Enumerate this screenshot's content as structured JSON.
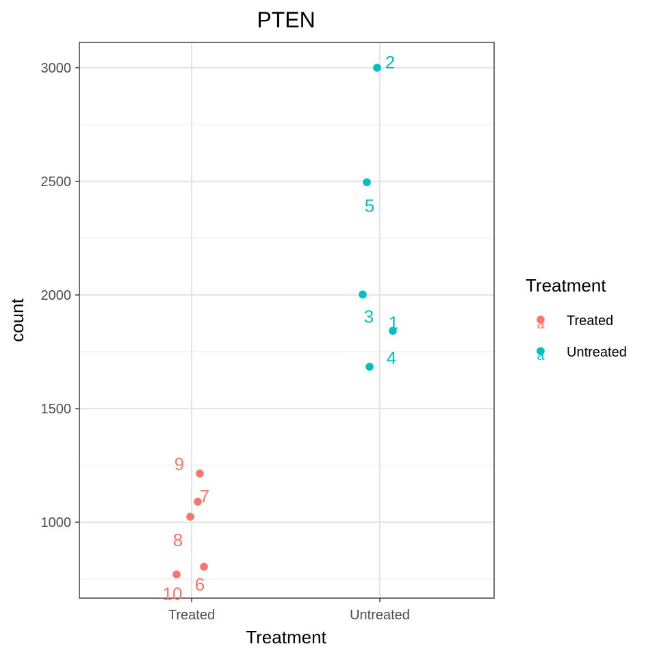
{
  "chart_data": {
    "type": "scatter",
    "title": "PTEN",
    "xlabel": "Treatment",
    "ylabel": "count",
    "categories": [
      "Treated",
      "Untreated"
    ],
    "y_ticks": [
      1000,
      1500,
      2000,
      2500,
      3000
    ],
    "ylim": [
      650,
      3110
    ],
    "grid": true,
    "legend": {
      "title": "Treatment",
      "position": "right",
      "entries": [
        {
          "label": "Treated",
          "color": "#F8766D"
        },
        {
          "label": "Untreated",
          "color": "#00BFC4"
        }
      ]
    },
    "series": [
      {
        "name": "Treated",
        "color": "#F8766D",
        "points": [
          {
            "label": "6",
            "category": "Treated",
            "count": 804
          },
          {
            "label": "7",
            "category": "Treated",
            "count": 1090
          },
          {
            "label": "8",
            "category": "Treated",
            "count": 1024
          },
          {
            "label": "9",
            "category": "Treated",
            "count": 1214
          },
          {
            "label": "10",
            "category": "Treated",
            "count": 770
          }
        ]
      },
      {
        "name": "Untreated",
        "color": "#00BFC4",
        "points": [
          {
            "label": "1",
            "category": "Untreated",
            "count": 1842
          },
          {
            "label": "2",
            "category": "Untreated",
            "count": 3000
          },
          {
            "label": "3",
            "category": "Untreated",
            "count": 2002
          },
          {
            "label": "4",
            "category": "Untreated",
            "count": 1684
          },
          {
            "label": "5",
            "category": "Untreated",
            "count": 2496
          }
        ]
      }
    ]
  }
}
